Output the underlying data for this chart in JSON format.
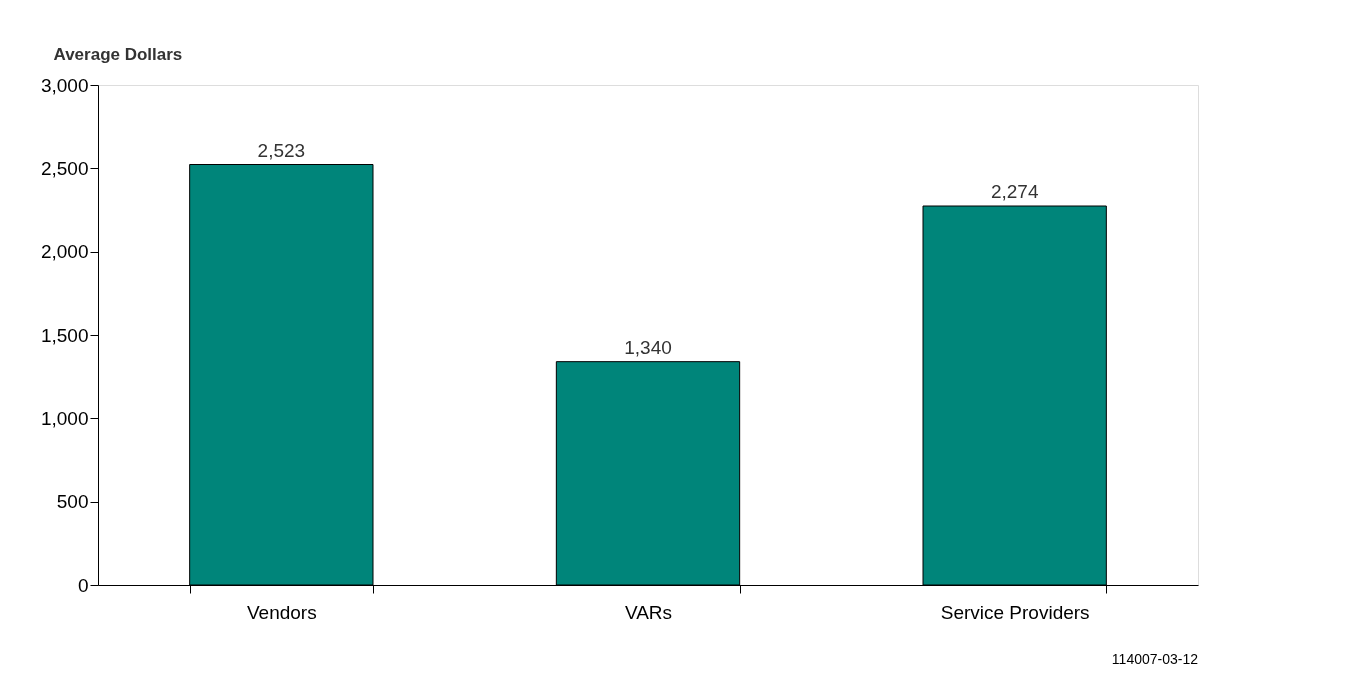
{
  "chart_data": {
    "type": "bar",
    "ylabel": "Average Dollars",
    "categories": [
      "Vendors",
      "VARs",
      "Service Providers"
    ],
    "values": [
      2523,
      1340,
      2274
    ],
    "color": "#00857a",
    "value_labels": [
      "2,523",
      "1,340",
      "2,274"
    ],
    "ylim": [
      0,
      3000
    ],
    "yticks": [
      0,
      {
        "value": 500,
        "label": "500"
      },
      {
        "value": 1000,
        "label": "1,000"
      },
      {
        "value": 1500,
        "label": "1,500"
      },
      {
        "value": 2000,
        "label": "2,000"
      },
      {
        "value": 2500,
        "label": "2,500"
      },
      {
        "value": 3000,
        "label": "3,000"
      }
    ],
    "grid": false,
    "annotations": [
      "114007-03-12"
    ]
  }
}
